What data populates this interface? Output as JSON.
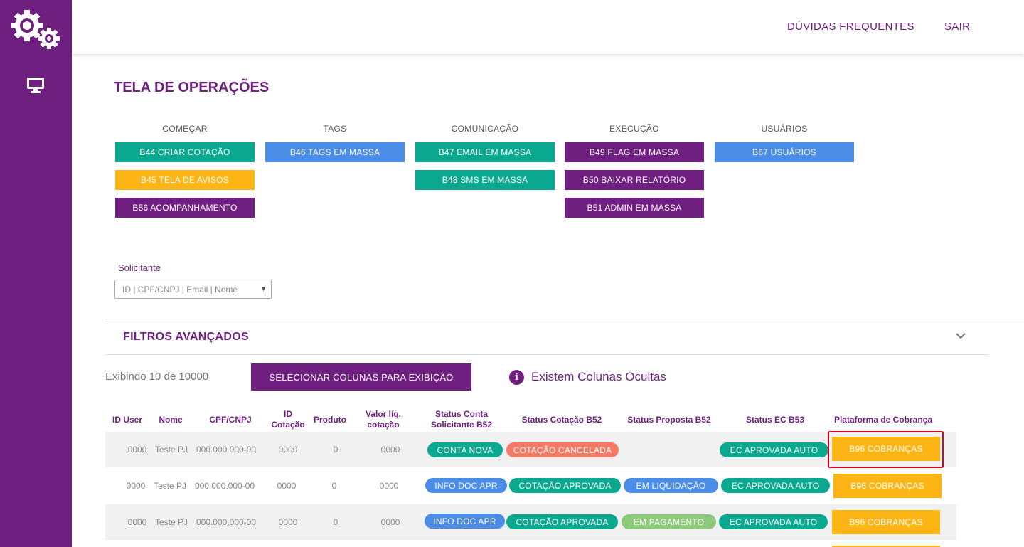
{
  "topbar": {
    "faq": "DÚVIDAS FREQUENTES",
    "logout": "SAIR"
  },
  "page": {
    "title": "TELA DE OPERAÇÕES"
  },
  "groups": {
    "comecar": {
      "title": "COMEÇAR",
      "buttons": [
        "B44  CRIAR COTAÇÃO",
        "B45 TELA DE AVISOS",
        "B56 ACOMPANHAMENTO"
      ]
    },
    "tags": {
      "title": "TAGS",
      "buttons": [
        "B46 TAGS EM MASSA"
      ]
    },
    "comunicacao": {
      "title": "COMUNICAÇÃO",
      "buttons": [
        "B47 EMAIL EM MASSA",
        "B48 SMS EM MASSA"
      ]
    },
    "execucao": {
      "title": "EXECUÇÃO",
      "buttons": [
        "B49 FLAG EM MASSA",
        "B50 BAIXAR RELATÓRIO",
        "B51 ADMIN EM MASSA"
      ]
    },
    "usuarios": {
      "title": "USUÁRIOS",
      "buttons": [
        "B67 USUÁRIOS"
      ]
    }
  },
  "solicitante": {
    "label": "Solicitante",
    "placeholder": "ID | CPF/CNPJ | Email | Nome"
  },
  "filters": {
    "title": "FILTROS AVANÇADOS"
  },
  "table_controls": {
    "showing": "Exibindo 10 de 10000",
    "select_columns": "SELECIONAR COLUNAS PARA EXIBIÇÃO",
    "hidden_notice": "Existem Colunas Ocultas",
    "info_glyph": "i"
  },
  "table": {
    "headers": {
      "id_user": "ID User",
      "nome": "Nome",
      "cpf": "CPF/CNPJ",
      "id_cot_1": "ID",
      "id_cot_2": "Cotação",
      "produto": "Produto",
      "valor_1": "Valor líq.",
      "valor_2": "cotação",
      "status_conta_1": "Status Conta",
      "status_conta_2": "Solicitante B52",
      "status_cot": "Status Cotação B52",
      "status_prop": "Status Proposta B52",
      "status_ec": "Status EC B53",
      "plataforma": "Plataforma de Cobrança"
    },
    "rows": [
      {
        "id_user": "0000",
        "nome": "Teste PJ",
        "cpf": "000.000.000-00",
        "id_cot": "0000",
        "produto": "0",
        "valor": "0000",
        "status_conta": "CONTA NOVA",
        "status_cot": "COTAÇÃO CANCELADA",
        "status_prop": "",
        "status_ec": "EC APROVADA AUTO",
        "cobranca": "B96 COBRANÇAS"
      },
      {
        "id_user": "0000",
        "nome": "Teste PJ",
        "cpf": "000.000.000-00",
        "id_cot": "0000",
        "produto": "0",
        "valor": "0000",
        "status_conta": "INFO DOC APR",
        "status_cot": "COTAÇÃO APROVADA",
        "status_prop": "EM LIQUIDAÇÃO",
        "status_ec": "EC APROVADA AUTO",
        "cobranca": "B96 COBRANÇAS"
      },
      {
        "id_user": "0000",
        "nome": "Teste PJ",
        "cpf": "000.000.000-00",
        "id_cot": "0000",
        "produto": "0",
        "valor": "0000",
        "status_conta": "INFO DOC APR",
        "status_cot": "COTAÇÃO APROVADA",
        "status_prop": "EM PAGAMENTO",
        "status_ec": "EC APROVADA AUTO",
        "cobranca": "B96 COBRANÇAS"
      }
    ]
  },
  "icons": {
    "logo": "gears-icon",
    "monitor": "monitor-icon",
    "chevron": "chevron-down-icon",
    "info": "info-icon"
  },
  "colors": {
    "brand_purple": "#6f1f7f",
    "teal": "#0aa88f",
    "blue": "#4a8ce6",
    "yellow": "#fdb515",
    "salmon": "#f47a65",
    "green": "#8cc97a",
    "highlight": "#d9001b"
  }
}
